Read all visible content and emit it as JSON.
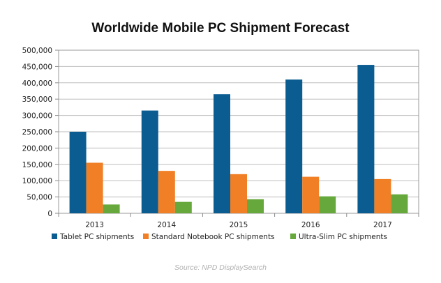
{
  "chart_data": {
    "type": "bar",
    "title": "Worldwide Mobile PC Shipment Forecast",
    "categories": [
      "2013",
      "2014",
      "2015",
      "2016",
      "2017"
    ],
    "series": [
      {
        "name": "Tablet PC shipments",
        "color": "#0b5d91",
        "values": [
          250000,
          315000,
          365000,
          410000,
          455000
        ]
      },
      {
        "name": "Standard Notebook PC shipments",
        "color": "#f07f26",
        "values": [
          155000,
          130000,
          120000,
          112000,
          105000
        ]
      },
      {
        "name": "Ultra-Slim PC shipments",
        "color": "#66a83b",
        "values": [
          27000,
          35000,
          43000,
          52000,
          58000
        ]
      }
    ],
    "ylim": [
      0,
      500000
    ],
    "yticks": [
      "0",
      "50,000",
      "100,000",
      "150,000",
      "200,000",
      "250,000",
      "300,000",
      "350,000",
      "400,000",
      "450,000",
      "500,000"
    ],
    "grid": true,
    "legend": "bottom",
    "source": "Source: NPD DisplaySearch"
  }
}
